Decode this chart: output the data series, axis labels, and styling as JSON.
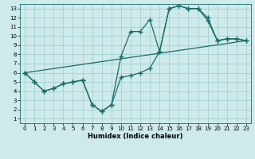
{
  "xlabel": "Humidex (Indice chaleur)",
  "bg_color": "#ceeaea",
  "line_color": "#1a6b6b",
  "grid_color": "#a0cccc",
  "xlim": [
    -0.5,
    23.5
  ],
  "ylim": [
    0.5,
    13.5
  ],
  "xticks": [
    0,
    1,
    2,
    3,
    4,
    5,
    6,
    7,
    8,
    9,
    10,
    11,
    12,
    13,
    14,
    15,
    16,
    17,
    18,
    19,
    20,
    21,
    22,
    23
  ],
  "yticks": [
    1,
    2,
    3,
    4,
    5,
    6,
    7,
    8,
    9,
    10,
    11,
    12,
    13
  ],
  "line1_x": [
    0,
    1,
    2,
    3,
    4,
    5,
    6,
    7,
    8,
    9,
    10,
    11,
    12,
    13,
    14,
    15,
    16,
    17,
    18,
    19,
    20,
    21,
    22,
    23
  ],
  "line1_y": [
    6.0,
    5.0,
    4.0,
    4.3,
    4.8,
    5.0,
    5.2,
    2.5,
    1.8,
    2.5,
    5.5,
    5.7,
    6.0,
    6.5,
    8.3,
    13.0,
    13.3,
    13.0,
    13.0,
    12.0,
    9.5,
    9.7,
    9.7,
    9.5
  ],
  "line2_x": [
    0,
    1,
    2,
    3,
    4,
    5,
    6,
    7,
    8,
    9,
    10,
    11,
    12,
    13,
    14,
    15,
    16,
    17,
    18,
    19,
    20,
    21,
    22,
    23
  ],
  "line2_y": [
    6.0,
    5.0,
    4.0,
    4.3,
    4.8,
    5.0,
    5.2,
    2.5,
    1.8,
    2.5,
    7.8,
    10.5,
    10.5,
    11.8,
    8.3,
    13.0,
    13.3,
    13.0,
    13.0,
    11.7,
    9.5,
    9.7,
    9.7,
    9.5
  ],
  "line3_x": [
    0,
    23
  ],
  "line3_y": [
    6.0,
    9.5
  ],
  "marker": "+",
  "markersize": 4.0,
  "linewidth": 0.9
}
